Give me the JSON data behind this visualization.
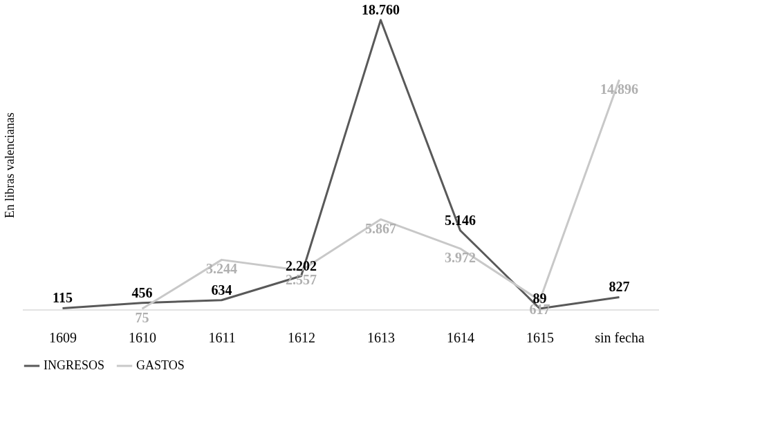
{
  "chart_data": {
    "type": "line",
    "ylabel": "En libras valencianas",
    "categories": [
      "1609",
      "1610",
      "1611",
      "1612",
      "1613",
      "1614",
      "1615",
      "sin fecha"
    ],
    "series": [
      {
        "name": "INGRESOS",
        "color": "#595959",
        "values": [
          115,
          456,
          634,
          2202,
          18760,
          5146,
          89,
          827
        ],
        "value_labels": [
          "115",
          "456",
          "634",
          "2.202",
          "18.760",
          "5.146",
          "89",
          "827"
        ]
      },
      {
        "name": "GASTOS",
        "color": "#c8c8c8",
        "values": [
          null,
          75,
          3244,
          2557,
          5867,
          3972,
          617,
          14896
        ],
        "value_labels": [
          null,
          "75",
          "3.244",
          "2.557",
          "5.867",
          "3.972",
          "617",
          "14.896"
        ]
      }
    ],
    "grid": false,
    "legend": "bottom",
    "marker": "none",
    "line_style": "solid"
  }
}
